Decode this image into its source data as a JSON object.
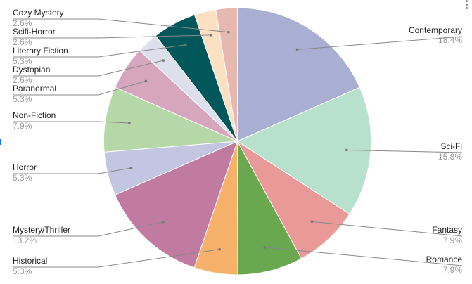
{
  "chart_data": {
    "type": "pie",
    "title": "",
    "start_angle_deg": 0,
    "direction": "clockwise",
    "label_style": "callout-lines",
    "slices": [
      {
        "label": "Contemporary",
        "percent_label": "18.4%",
        "value": 18.4,
        "color": "#a9afd3"
      },
      {
        "label": "Sci-Fi",
        "percent_label": "15.8%",
        "value": 15.8,
        "color": "#b7e1cd"
      },
      {
        "label": "Fantasy",
        "percent_label": "7.9%",
        "value": 7.9,
        "color": "#ea9999"
      },
      {
        "label": "Romance",
        "percent_label": "7.9%",
        "value": 7.9,
        "color": "#6aa84f"
      },
      {
        "label": "Historical",
        "percent_label": "5.3%",
        "value": 5.3,
        "color": "#f6b26b"
      },
      {
        "label": "Mystery/Thriller",
        "percent_label": "13.2%",
        "value": 13.2,
        "color": "#c27ba0"
      },
      {
        "label": "Horror",
        "percent_label": "5.3%",
        "value": 5.3,
        "color": "#c2c6e0"
      },
      {
        "label": "Non-Fiction",
        "percent_label": "7.9%",
        "value": 7.9,
        "color": "#b6d7a8"
      },
      {
        "label": "Paranormal",
        "percent_label": "5.3%",
        "value": 5.3,
        "color": "#d5a6bd"
      },
      {
        "label": "Dystopian",
        "percent_label": "2.6%",
        "value": 2.6,
        "color": "#dde0ec"
      },
      {
        "label": "Literary Fiction",
        "percent_label": "5.3%",
        "value": 5.3,
        "color": "#02575a"
      },
      {
        "label": "Scifi-Horror",
        "percent_label": "2.6%",
        "value": 2.6,
        "color": "#fce0c2"
      },
      {
        "label": "Cozy Mystery",
        "percent_label": "2.6%",
        "value": 2.6,
        "color": "#e6b8af"
      }
    ]
  },
  "icons": {
    "menu": "more-vert-icon"
  },
  "colors": {
    "leader_line": "#888888",
    "percent_text": "#999999",
    "label_text": "#222222"
  }
}
